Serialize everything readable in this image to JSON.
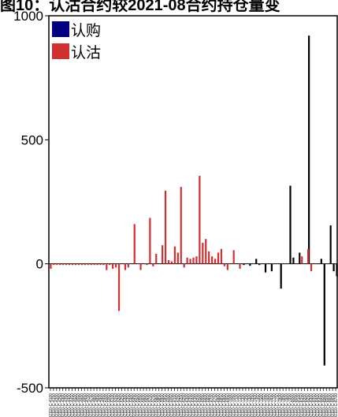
{
  "title": "图10：认沽合约较2021-08合约持仓量变",
  "chart_data": {
    "type": "bar",
    "title": "图10：认沽合约较2021-08合约持仓量变",
    "xlabel": "",
    "ylabel": "",
    "ylim": [
      -500,
      1000
    ],
    "yticks": [
      -500,
      0,
      500,
      1000
    ],
    "legend_position": "top-left",
    "grid": false,
    "series": [
      {
        "name": "认购",
        "color": "#000080",
        "values": [
          0,
          0,
          0,
          0,
          0,
          0,
          0,
          0,
          0,
          0,
          0,
          0,
          0,
          0,
          0,
          0,
          0,
          0,
          0,
          0,
          0,
          0,
          0,
          0,
          0,
          0,
          0,
          0,
          0,
          0,
          0,
          0,
          0,
          0,
          0,
          0,
          0,
          0,
          0,
          0,
          0,
          0,
          0,
          0,
          0,
          0,
          0,
          0,
          0,
          0,
          0,
          0,
          0,
          0,
          0,
          0,
          0,
          0,
          0,
          0,
          0,
          0,
          -5,
          0,
          -8,
          0,
          20,
          -5,
          0,
          -35,
          0,
          -30,
          0,
          0,
          -100,
          0,
          0,
          315,
          25,
          0,
          45,
          0,
          0,
          920,
          0,
          0,
          0,
          20,
          -410,
          0,
          155,
          -30,
          -50
        ]
      },
      {
        "name": "认沽",
        "color": "#d03030",
        "values": [
          -20,
          -5,
          -5,
          -5,
          -5,
          -5,
          -5,
          -5,
          -5,
          -5,
          -5,
          -5,
          -5,
          -5,
          -5,
          -5,
          -5,
          -5,
          -25,
          -5,
          -20,
          -15,
          -190,
          0,
          -25,
          -15,
          0,
          160,
          0,
          -25,
          0,
          -5,
          185,
          -10,
          40,
          0,
          75,
          295,
          15,
          10,
          70,
          45,
          310,
          -15,
          25,
          20,
          25,
          30,
          355,
          85,
          100,
          50,
          30,
          20,
          45,
          60,
          -10,
          -25,
          0,
          55,
          0,
          -20,
          0,
          0,
          0,
          0,
          0,
          0,
          0,
          0,
          0,
          0,
          0,
          0,
          0,
          0,
          0,
          0,
          0,
          0,
          0,
          30,
          0,
          60,
          -30,
          0,
          0,
          0,
          0,
          0,
          0,
          0,
          0
        ]
      }
    ],
    "categories": [
      "IO2110-C-4100",
      "IO2110-C-4150",
      "IO2110-C-4200",
      "IO2110-C-4250",
      "IO2110-C-4300",
      "IO2110-C-4350",
      "IO2110-C-4400",
      "IO2110-C-4450",
      "IO2110-C-4500",
      "IO2110-C-4550",
      "IO2110-C-4600",
      "IO2110-C-4650",
      "IO2110-C-4700",
      "IO2110-C-4750",
      "IO2110-C-4800",
      "IO2110-C-4850",
      "IO2110-C-4900",
      "IO2110-C-4950",
      "IO2110-C-5000",
      "IO2110-C-5050",
      "IO2110-C-5100",
      "IO2110-C-5150",
      "IO2110-C-5200",
      "IO2110-C-5250",
      "IO2110-C-5300",
      "IO2110-C-5350",
      "IO2110-C-5400",
      "IO2110-C-5450",
      "IO2110-C-5500",
      "IO2110-C-5550",
      "IO2110-C-5600",
      "IO2110-C-5650",
      "IO2110-C-5700",
      "IO2110-C-5750",
      "IO2110-C-5800",
      "IO2110-C-5850",
      "IO2110-C-5900",
      "IO2110-C-5950",
      "IO2110-C-6000",
      "IO2110-C-6050",
      "IO2110-C-6100",
      "IO2110-C-6150",
      "IO2110-C-6200",
      "IO2110-C-6250",
      "IO2110-C-6300",
      "IO2110-C-6350",
      "IO2110-C-6400",
      "IO2110-C-6450",
      "IO2110-C-6500",
      "IO2110-C-6550",
      "IO2110-C-6600",
      "IO2110-C-6650",
      "IO2110-C-6700",
      "IO2110-C-6750",
      "IO2110-C-6800",
      "IO2110-C-6850",
      "IO2110-C-6900",
      "IO2110-C-6950",
      "IO2110-C-7000",
      "IO2110-C-7050",
      "IO2110-C-7100",
      "IO2110-C-7150",
      "IO2110-C-7200",
      "IO2110-C-7250",
      "IO2110-C-7300",
      "IO2110-C-7350",
      "IO2110-C-7400",
      "IO2110-C-7450",
      "IO2110-C-7500",
      "IO2110-C-7550",
      "IO2110-C-7600",
      "IO2110-C-7650",
      "IO2110-C-7700",
      "IO2110-C-7750",
      "IO2110-C-7800",
      "IO2110-C-7850",
      "IO2110-C-7900",
      "IO2110-C-7950",
      "IO2110-C-8000",
      "IO2110-C-8050",
      "IO2110-C-8100",
      "IO2110-C-8150",
      "IO2110-C-8200",
      "IO2110-C-8250",
      "IO2110-C-8300",
      "IO2110-C-8350",
      "IO2110-C-8400",
      "IO2110-C-8450",
      "IO2110-C-8500",
      "IO2110-C-8550",
      "IO2110-C-8600",
      "IO2110-C-8650",
      "IO2110-C-8700"
    ]
  }
}
